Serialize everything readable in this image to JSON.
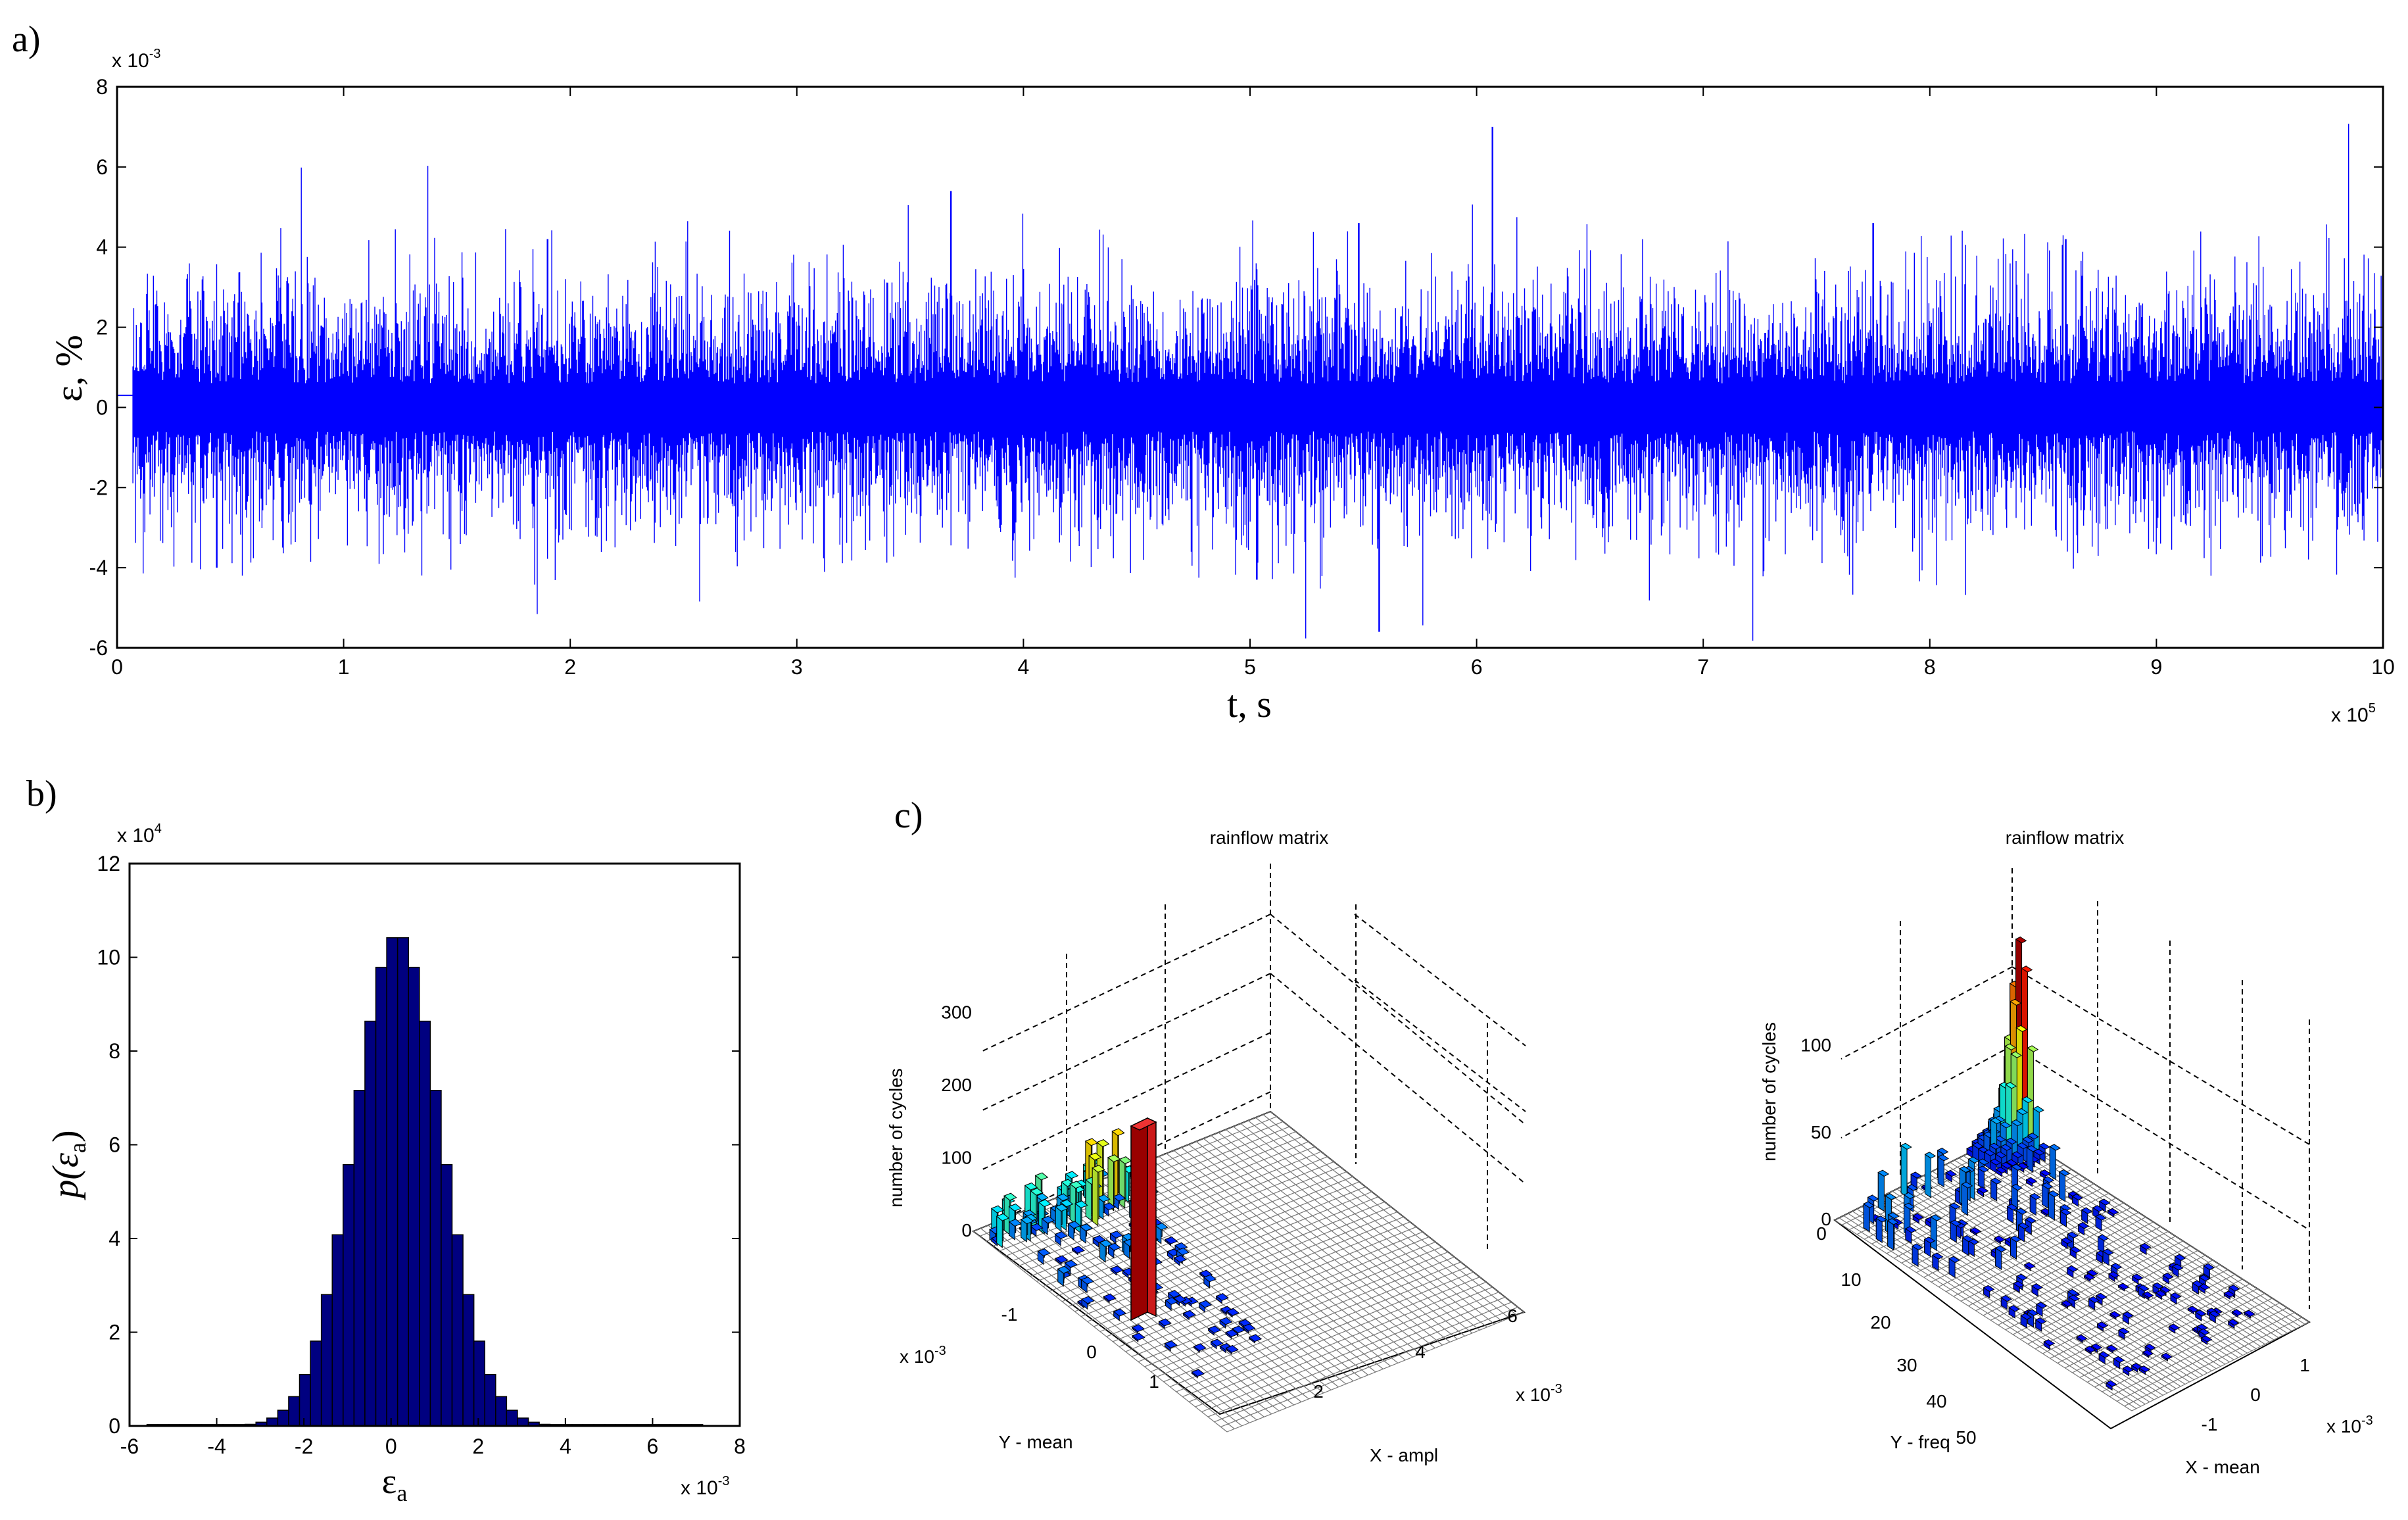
{
  "colors": {
    "signal": "#0000ff",
    "bars": "#000080",
    "axis": "#000000",
    "mesh": "#555555",
    "peak": "#cc0000"
  },
  "chart_data": [
    {
      "panel": "a)",
      "type": "line",
      "title": "",
      "xlabel": "t, s",
      "ylabel": "ε, %",
      "x_scale_label": "x 10",
      "x_scale_exp": "5",
      "y_scale_label": "x 10",
      "y_scale_exp": "-3",
      "xlim": [
        0,
        10
      ],
      "ylim": [
        -6,
        8
      ],
      "xticks": [
        "0",
        "1",
        "2",
        "3",
        "4",
        "5",
        "6",
        "7",
        "8",
        "9",
        "10"
      ],
      "yticks": [
        "8",
        "6",
        "4",
        "2",
        "0",
        "-2",
        "-4",
        "-6"
      ],
      "envelope_std": 0.9,
      "notable_spikes": [
        {
          "x": 3.68,
          "y": 5.4
        },
        {
          "x": 6.07,
          "y": 7.0
        },
        {
          "x": 5.57,
          "y": -5.6
        },
        {
          "x": 5.48,
          "y": 4.6
        },
        {
          "x": 7.75,
          "y": 4.6
        },
        {
          "x": 5.03,
          "y": -4.3
        },
        {
          "x": 0.44,
          "y": -4.0
        },
        {
          "x": 8.6,
          "y": 4.2
        },
        {
          "x": 1.9,
          "y": 4.2
        }
      ]
    },
    {
      "panel": "b)",
      "type": "bar",
      "title": "",
      "xlabel": "ε",
      "xlabel_sub": "a",
      "ylabel": "p(ε",
      "ylabel_sub": "a",
      "ylabel_close": ")",
      "x_scale_label": "x 10",
      "x_scale_exp": "-3",
      "y_scale_label": "x 10",
      "y_scale_exp": "4",
      "xlim": [
        -6,
        8
      ],
      "ylim": [
        0,
        12
      ],
      "xticks": [
        "-6",
        "-4",
        "-2",
        "0",
        "2",
        "4",
        "6",
        "8"
      ],
      "yticks": [
        "12",
        "10",
        "8",
        "6",
        "4",
        "2",
        "0"
      ],
      "mean": 0.15,
      "std": 1.0,
      "peak": 10.5,
      "bin_width": 0.25,
      "range": [
        -5.6,
        7.0
      ]
    },
    {
      "panel": "c)",
      "type": "bar3d",
      "title": "rainflow matrix",
      "xlabel": "X - ampl",
      "ylabel": "Y - mean",
      "zlabel": "number of cycles",
      "x_scale_label": "x 10",
      "x_scale_exp": "-3",
      "y_scale_label": "x 10",
      "y_scale_exp": "-3",
      "xticks": [
        "2",
        "4",
        "6"
      ],
      "yticks": [
        "-1",
        "0",
        "1"
      ],
      "zticks": [
        "300",
        "200",
        "100",
        "0"
      ],
      "zlim": [
        0,
        380
      ],
      "peak_value": 290
    },
    {
      "type": "bar3d",
      "title": "rainflow matrix",
      "xlabel": "X - mean",
      "ylabel": "Y - freq",
      "zlabel": "number of cycles",
      "x_scale_label": "x 10",
      "x_scale_exp": "-3",
      "xticks": [
        "1",
        "0",
        "-1"
      ],
      "yticks": [
        "0",
        "10",
        "20",
        "30",
        "40",
        "50"
      ],
      "zticks": [
        "100",
        "50",
        "0"
      ],
      "zlim": [
        0,
        140
      ],
      "peak_value": 130
    }
  ]
}
